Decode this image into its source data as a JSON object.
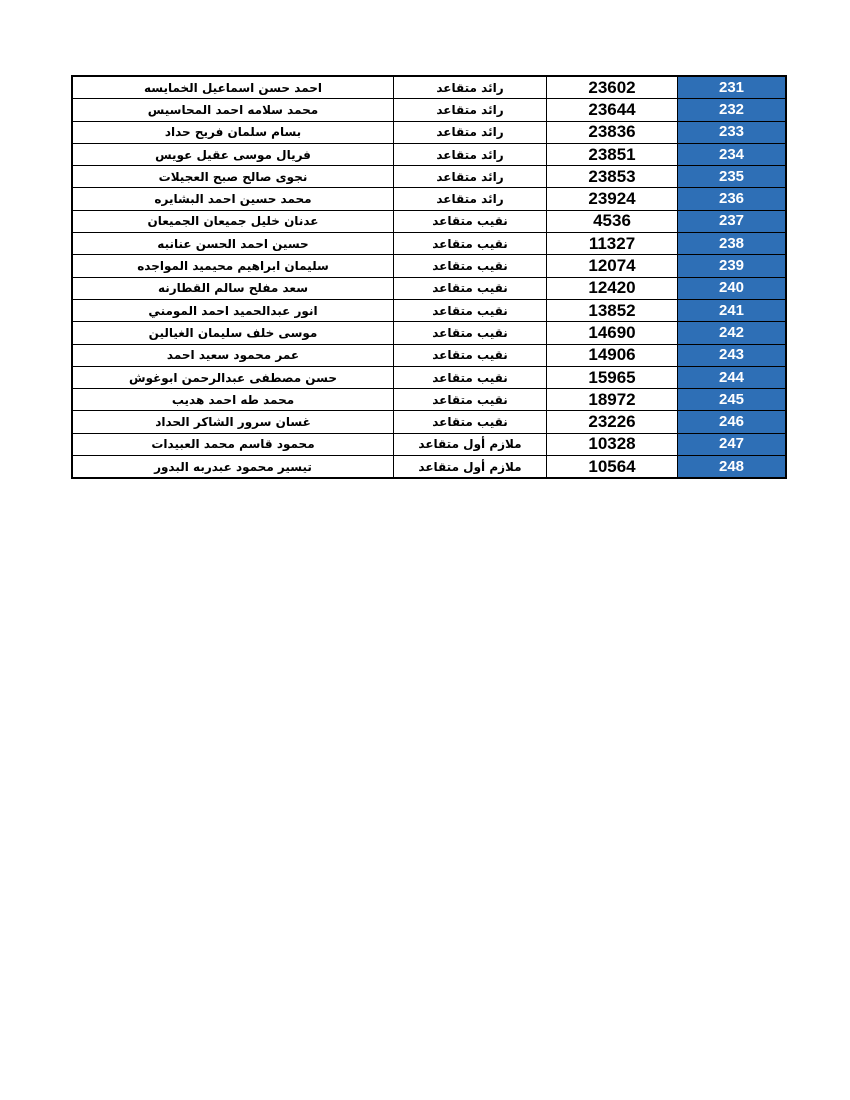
{
  "colors": {
    "index_cell_bg": "#2e6fb6",
    "index_cell_text": "#ffffff"
  },
  "rows": [
    {
      "name": "احمد حسن اسماعيل الخمايسه",
      "rank": "رائد متقاعد",
      "number": "23602",
      "index": "231"
    },
    {
      "name": "محمد سلامه احمد المحاسيس",
      "rank": "رائد متقاعد",
      "number": "23644",
      "index": "232"
    },
    {
      "name": "بسام سلمان فريح حداد",
      "rank": "رائد متقاعد",
      "number": "23836",
      "index": "233"
    },
    {
      "name": "فريال موسى عقيل عويس",
      "rank": "رائد متقاعد",
      "number": "23851",
      "index": "234"
    },
    {
      "name": "نجوى صالح صبح العجيلات",
      "rank": "رائد متقاعد",
      "number": "23853",
      "index": "235"
    },
    {
      "name": "محمد حسين احمد البشايره",
      "rank": "رائد متقاعد",
      "number": "23924",
      "index": "236"
    },
    {
      "name": "عدنان خليل  جميعان الجميعان",
      "rank": "نقيب متقاعد",
      "number": "4536",
      "index": "237"
    },
    {
      "name": "حسين احمد الحسن عنانبه",
      "rank": "نقيب متقاعد",
      "number": "11327",
      "index": "238"
    },
    {
      "name": "سليمان ابراهيم محيميد المواجده",
      "rank": "نقيب متقاعد",
      "number": "12074",
      "index": "239"
    },
    {
      "name": "سعد مفلح سالم القطارنه",
      "rank": "نقيب متقاعد",
      "number": "12420",
      "index": "240"
    },
    {
      "name": "انور عبدالحميد احمد المومني",
      "rank": "نقيب متقاعد",
      "number": "13852",
      "index": "241"
    },
    {
      "name": "موسى خلف سليمان الغيالين",
      "rank": "نقيب متقاعد",
      "number": "14690",
      "index": "242"
    },
    {
      "name": "عمر محمود سعيد احمد",
      "rank": "نقيب متقاعد",
      "number": "14906",
      "index": "243"
    },
    {
      "name": "حسن مصطفى عبدالرحمن ابوغوش",
      "rank": "نقيب متقاعد",
      "number": "15965",
      "index": "244"
    },
    {
      "name": "محمد طه احمد هديب",
      "rank": "نقيب متقاعد",
      "number": "18972",
      "index": "245"
    },
    {
      "name": "غسان سرور الشاكر الحداد",
      "rank": "نقيب متقاعد",
      "number": "23226",
      "index": "246"
    },
    {
      "name": "محمود قاسم محمد العبيدات",
      "rank": "ملازم أول متقاعد",
      "number": "10328",
      "index": "247"
    },
    {
      "name": "تيسير محمود عبدربه البدور",
      "rank": "ملازم أول متقاعد",
      "number": "10564",
      "index": "248"
    }
  ]
}
